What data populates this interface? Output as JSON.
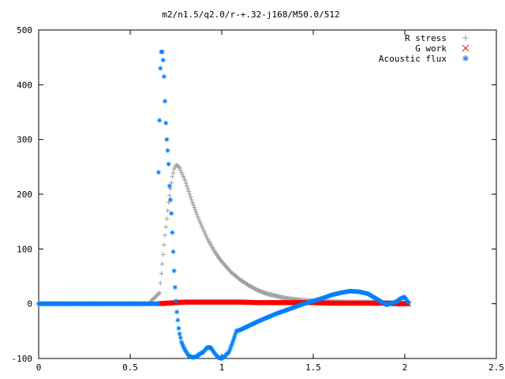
{
  "chart_data": {
    "type": "scatter",
    "title": "m2/n1.5/q2.0/r-+.32-j168/M50.0/512",
    "xlabel": "",
    "ylabel": "",
    "xlim": [
      0,
      2.5
    ],
    "ylim": [
      -100,
      500
    ],
    "xticks": [
      {
        "value": 0,
        "label": "0"
      },
      {
        "value": 0.5,
        "label": "0.5"
      },
      {
        "value": 1,
        "label": "1"
      },
      {
        "value": 1.5,
        "label": "1.5"
      },
      {
        "value": 2,
        "label": "2"
      },
      {
        "value": 2.5,
        "label": "2.5"
      }
    ],
    "yticks": [
      {
        "value": -100,
        "label": "-100"
      },
      {
        "value": 0,
        "label": "0"
      },
      {
        "value": 100,
        "label": "100"
      },
      {
        "value": 200,
        "label": "200"
      },
      {
        "value": 300,
        "label": "300"
      },
      {
        "value": 400,
        "label": "400"
      },
      {
        "value": 500,
        "label": "500"
      }
    ],
    "grid": false,
    "legend_position": "top-right",
    "series": [
      {
        "name": "R stress",
        "marker": "plus",
        "color": "#a0a0a0",
        "x": [
          0.0,
          0.2,
          0.4,
          0.6,
          0.66,
          0.67,
          0.68,
          0.69,
          0.7,
          0.71,
          0.72,
          0.73,
          0.74,
          0.75,
          0.76,
          0.77,
          0.78,
          0.8,
          0.82,
          0.84,
          0.86,
          0.88,
          0.9,
          0.92,
          0.94,
          0.96,
          0.98,
          1.0,
          1.05,
          1.1,
          1.15,
          1.2,
          1.25,
          1.3,
          1.35,
          1.4,
          1.45,
          1.5,
          1.6,
          1.7,
          1.8,
          1.9,
          1.95,
          2.0,
          2.02
        ],
        "y": [
          0,
          0,
          0,
          0,
          20,
          55,
          90,
          125,
          155,
          185,
          210,
          232,
          246,
          253,
          252,
          248,
          240,
          225,
          205,
          185,
          167,
          150,
          135,
          120,
          108,
          96,
          86,
          77,
          58,
          44,
          33,
          24,
          18,
          14,
          10,
          8,
          6,
          5,
          4,
          3,
          3,
          2,
          2,
          1,
          1
        ]
      },
      {
        "name": "G work",
        "marker": "cross",
        "color": "#ff0000",
        "x": [
          0.66,
          0.7,
          0.75,
          0.8,
          0.9,
          1.0,
          1.1,
          1.2,
          1.3,
          1.4,
          1.5,
          1.6,
          1.7,
          1.8,
          1.9,
          1.95,
          2.0,
          2.02
        ],
        "y": [
          0,
          1,
          2,
          3,
          3,
          3,
          3,
          2,
          2,
          2,
          2,
          1,
          1,
          1,
          1,
          0,
          0,
          0
        ]
      },
      {
        "name": "Acoustic flux",
        "marker": "star",
        "color": "#0080ff",
        "x": [
          0.0,
          0.1,
          0.2,
          0.3,
          0.4,
          0.5,
          0.6,
          0.65,
          0.655,
          0.665,
          0.67,
          0.675,
          0.68,
          0.685,
          0.69,
          0.695,
          0.7,
          0.705,
          0.71,
          0.715,
          0.72,
          0.725,
          0.73,
          0.735,
          0.74,
          0.745,
          0.75,
          0.755,
          0.76,
          0.765,
          0.77,
          0.775,
          0.78,
          0.79,
          0.8,
          0.81,
          0.82,
          0.84,
          0.86,
          0.88,
          0.9,
          0.92,
          0.94,
          0.96,
          0.98,
          1.0,
          1.02,
          1.04,
          1.06,
          1.08,
          1.1,
          1.15,
          1.2,
          1.25,
          1.3,
          1.35,
          1.4,
          1.45,
          1.5,
          1.55,
          1.6,
          1.65,
          1.7,
          1.75,
          1.8,
          1.85,
          1.9,
          1.95,
          1.98,
          2.0,
          2.02
        ],
        "y": [
          0,
          0,
          0,
          0,
          0,
          0,
          0,
          0,
          240,
          430,
          460,
          460,
          445,
          415,
          370,
          330,
          300,
          280,
          255,
          215,
          190,
          165,
          130,
          95,
          60,
          30,
          5,
          -15,
          -30,
          -45,
          -55,
          -62,
          -70,
          -78,
          -85,
          -90,
          -95,
          -98,
          -97,
          -92,
          -88,
          -80,
          -80,
          -90,
          -98,
          -100,
          -95,
          -88,
          -70,
          -50,
          -48,
          -40,
          -32,
          -25,
          -18,
          -12,
          -6,
          0,
          5,
          10,
          16,
          20,
          23,
          22,
          18,
          8,
          -2,
          3,
          10,
          12,
          2
        ]
      }
    ]
  },
  "colors": {
    "background": "#ffffff",
    "axes": "#000000"
  }
}
